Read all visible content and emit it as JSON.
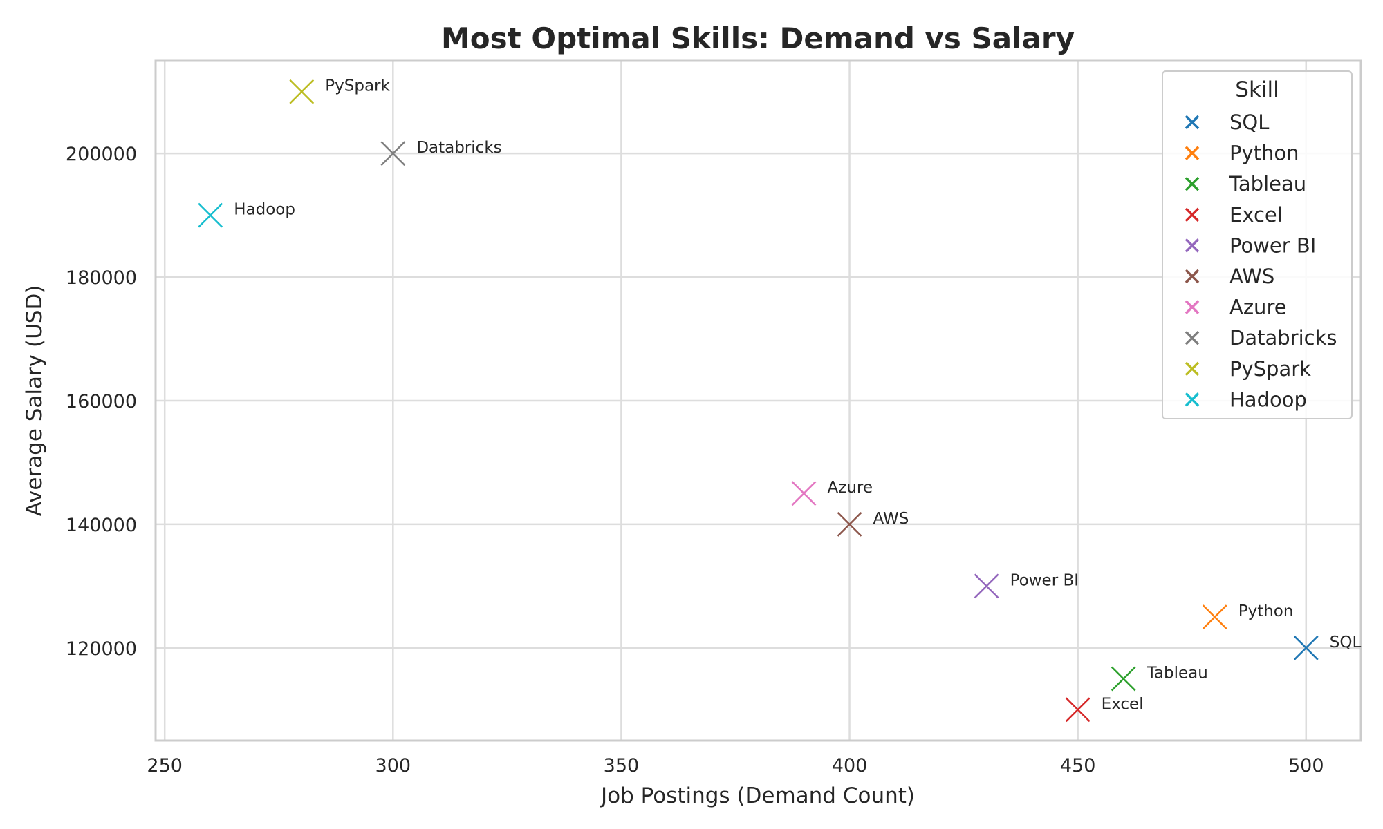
{
  "chart_data": {
    "type": "scatter",
    "title": "Most Optimal Skills: Demand vs Salary",
    "xlabel": "Job Postings (Demand Count)",
    "ylabel": "Average Salary (USD)",
    "xlim": [
      248,
      512
    ],
    "ylim": [
      105000,
      215000
    ],
    "xticks": [
      250,
      300,
      350,
      400,
      450,
      500
    ],
    "yticks": [
      120000,
      140000,
      160000,
      180000,
      200000
    ],
    "grid": true,
    "legend": {
      "title": "Skill",
      "placement": "top-right"
    },
    "marker": "x",
    "points": [
      {
        "skill": "SQL",
        "x": 500,
        "y": 120000,
        "color": "#1f77b4"
      },
      {
        "skill": "Python",
        "x": 480,
        "y": 125000,
        "color": "#ff7f0e"
      },
      {
        "skill": "Tableau",
        "x": 460,
        "y": 115000,
        "color": "#2ca02c"
      },
      {
        "skill": "Excel",
        "x": 450,
        "y": 110000,
        "color": "#d62728"
      },
      {
        "skill": "Power BI",
        "x": 430,
        "y": 130000,
        "color": "#9467bd"
      },
      {
        "skill": "AWS",
        "x": 400,
        "y": 140000,
        "color": "#8c564b"
      },
      {
        "skill": "Azure",
        "x": 390,
        "y": 145000,
        "color": "#e377c2"
      },
      {
        "skill": "Databricks",
        "x": 300,
        "y": 200000,
        "color": "#7f7f7f"
      },
      {
        "skill": "PySpark",
        "x": 280,
        "y": 210000,
        "color": "#bcbd22"
      },
      {
        "skill": "Hadoop",
        "x": 260,
        "y": 190000,
        "color": "#17becf"
      }
    ]
  }
}
